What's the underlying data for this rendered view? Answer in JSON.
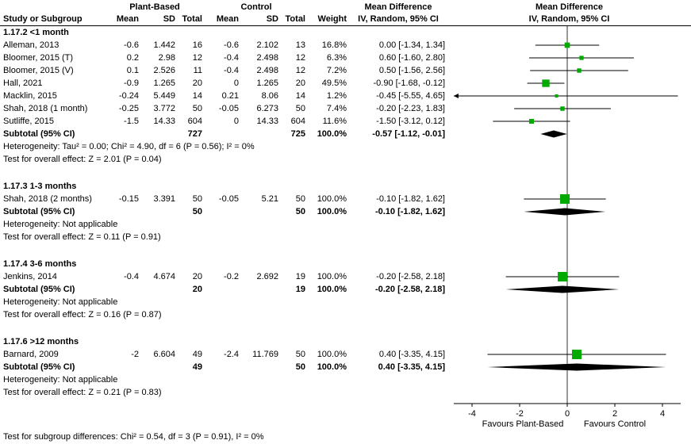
{
  "headers": {
    "study": "Study or Subgroup",
    "mean": "Mean",
    "sd": "SD",
    "total": "Total",
    "weight": "Weight",
    "md": "Mean Difference",
    "ci": "IV, Random, 95% CI"
  },
  "footnote": "Test for subgroup differences: Chi² = 0.54, df = 3 (P = 0.91), I² = 0%",
  "chart_data": {
    "type": "scatter",
    "subtype": "forest-plot",
    "title": "Mean Difference, IV, Random, 95% CI",
    "marker_color": "#00AA00",
    "diamond_color": "#000000",
    "group_labels": [
      "Plant-Based",
      "Control"
    ],
    "x_axis": {
      "min": -4.77,
      "max": 4.77,
      "ticks": [
        -4,
        -2,
        0,
        2,
        4
      ],
      "favours_left": "Favours Plant-Based",
      "favours_right": "Favours Control"
    },
    "groups": [
      {
        "name": "1.17.2 <1 month",
        "studies": [
          {
            "study": "Alleman, 2013",
            "mean1": "-0.6",
            "sd1": "1.442",
            "total1": "16",
            "mean2": "-0.6",
            "sd2": "2.102",
            "total2": "13",
            "weight": "16.8%",
            "weight_pct": 16.8,
            "ci_text": "0.00 [-1.34, 1.34]",
            "est": 0.0,
            "lo": -1.34,
            "hi": 1.34
          },
          {
            "study": "Bloomer, 2015 (T)",
            "mean1": "0.2",
            "sd1": "2.98",
            "total1": "12",
            "mean2": "-0.4",
            "sd2": "2.498",
            "total2": "12",
            "weight": "6.3%",
            "weight_pct": 6.3,
            "ci_text": "0.60 [-1.60, 2.80]",
            "est": 0.6,
            "lo": -1.6,
            "hi": 2.8
          },
          {
            "study": "Bloomer, 2015 (V)",
            "mean1": "0.1",
            "sd1": "2.526",
            "total1": "11",
            "mean2": "-0.4",
            "sd2": "2.498",
            "total2": "12",
            "weight": "7.2%",
            "weight_pct": 7.2,
            "ci_text": "0.50 [-1.56, 2.56]",
            "est": 0.5,
            "lo": -1.56,
            "hi": 2.56
          },
          {
            "study": "Hall, 2021",
            "mean1": "-0.9",
            "sd1": "1.265",
            "total1": "20",
            "mean2": "0",
            "sd2": "1.265",
            "total2": "20",
            "weight": "49.5%",
            "weight_pct": 49.5,
            "ci_text": "-0.90 [-1.68, -0.12]",
            "est": -0.9,
            "lo": -1.68,
            "hi": -0.12
          },
          {
            "study": "Macklin, 2015",
            "mean1": "-0.24",
            "sd1": "5.449",
            "total1": "14",
            "mean2": "0.21",
            "sd2": "8.06",
            "total2": "14",
            "weight": "1.2%",
            "weight_pct": 1.2,
            "ci_text": "-0.45 [-5.55, 4.65]",
            "est": -0.45,
            "lo": -5.55,
            "hi": 4.65
          },
          {
            "study": "Shah, 2018 (1 month)",
            "mean1": "-0.25",
            "sd1": "3.772",
            "total1": "50",
            "mean2": "-0.05",
            "sd2": "6.273",
            "total2": "50",
            "weight": "7.4%",
            "weight_pct": 7.4,
            "ci_text": "-0.20 [-2.23, 1.83]",
            "est": -0.2,
            "lo": -2.23,
            "hi": 1.83
          },
          {
            "study": "Sutliffe, 2015",
            "mean1": "-1.5",
            "sd1": "14.33",
            "total1": "604",
            "mean2": "0",
            "sd2": "14.33",
            "total2": "604",
            "weight": "11.6%",
            "weight_pct": 11.6,
            "ci_text": "-1.50 [-3.12, 0.12]",
            "est": -1.5,
            "lo": -3.12,
            "hi": 0.12
          }
        ],
        "subtotal": {
          "label": "Subtotal (95% CI)",
          "total1": "727",
          "total2": "725",
          "weight": "100.0%",
          "ci_text": "-0.57 [-1.12, -0.01]",
          "est": -0.57,
          "lo": -1.12,
          "hi": -0.01
        },
        "heterogeneity": "Heterogeneity: Tau² = 0.00; Chi² = 4.90, df = 6 (P = 0.56); I² = 0%",
        "overall": "Test for overall effect: Z = 2.01 (P = 0.04)"
      },
      {
        "name": "1.17.3 1-3 months",
        "studies": [
          {
            "study": "Shah, 2018 (2 months)",
            "mean1": "-0.15",
            "sd1": "3.391",
            "total1": "50",
            "mean2": "-0.05",
            "sd2": "5.21",
            "total2": "50",
            "weight": "100.0%",
            "weight_pct": 100,
            "ci_text": "-0.10 [-1.82, 1.62]",
            "est": -0.1,
            "lo": -1.82,
            "hi": 1.62
          }
        ],
        "subtotal": {
          "label": "Subtotal (95% CI)",
          "total1": "50",
          "total2": "50",
          "weight": "100.0%",
          "ci_text": "-0.10 [-1.82, 1.62]",
          "est": -0.1,
          "lo": -1.82,
          "hi": 1.62
        },
        "heterogeneity": "Heterogeneity: Not applicable",
        "overall": "Test for overall effect: Z = 0.11 (P = 0.91)"
      },
      {
        "name": "1.17.4 3-6 months",
        "studies": [
          {
            "study": "Jenkins, 2014",
            "mean1": "-0.4",
            "sd1": "4.674",
            "total1": "20",
            "mean2": "-0.2",
            "sd2": "2.692",
            "total2": "19",
            "weight": "100.0%",
            "weight_pct": 100,
            "ci_text": "-0.20 [-2.58, 2.18]",
            "est": -0.2,
            "lo": -2.58,
            "hi": 2.18
          }
        ],
        "subtotal": {
          "label": "Subtotal (95% CI)",
          "total1": "20",
          "total2": "19",
          "weight": "100.0%",
          "ci_text": "-0.20 [-2.58, 2.18]",
          "est": -0.2,
          "lo": -2.58,
          "hi": 2.18
        },
        "heterogeneity": "Heterogeneity: Not applicable",
        "overall": "Test for overall effect: Z = 0.16 (P = 0.87)"
      },
      {
        "name": "1.17.6 >12 months",
        "studies": [
          {
            "study": "Barnard, 2009",
            "mean1": "-2",
            "sd1": "6.604",
            "total1": "49",
            "mean2": "-2.4",
            "sd2": "11.769",
            "total2": "50",
            "weight": "100.0%",
            "weight_pct": 100,
            "ci_text": "0.40 [-3.35, 4.15]",
            "est": 0.4,
            "lo": -3.35,
            "hi": 4.15
          }
        ],
        "subtotal": {
          "label": "Subtotal (95% CI)",
          "total1": "49",
          "total2": "50",
          "weight": "100.0%",
          "ci_text": "0.40 [-3.35, 4.15]",
          "est": 0.4,
          "lo": -3.35,
          "hi": 4.15
        },
        "heterogeneity": "Heterogeneity: Not applicable",
        "overall": "Test for overall effect: Z = 0.21 (P = 0.83)"
      }
    ]
  }
}
